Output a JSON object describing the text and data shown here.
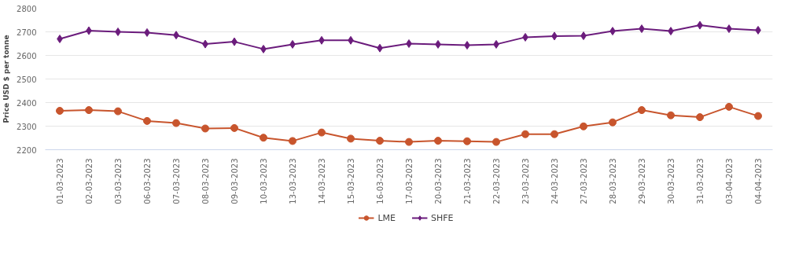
{
  "chart_data": {
    "type": "line",
    "ylabel": "Price USD $ per tonne",
    "categories": [
      "01-03-2023",
      "02-03-2023",
      "03-03-2023",
      "06-03-2023",
      "07-03-2023",
      "08-03-2023",
      "09-03-2023",
      "10-03-2023",
      "13-03-2023",
      "14-03-2023",
      "15-03-2023",
      "16-03-2023",
      "17-03-2023",
      "20-03-2023",
      "21-03-2023",
      "22-03-2023",
      "23-03-2023",
      "24-03-2023",
      "27-03-2023",
      "28-03-2023",
      "29-03-2023",
      "30-03-2023",
      "31-03-2023",
      "03-04-2023",
      "04-04-2023"
    ],
    "series": [
      {
        "name": "LME",
        "color": "#c8552d",
        "marker": "circle",
        "values": [
          2365,
          2368,
          2363,
          2322,
          2313,
          2290,
          2292,
          2251,
          2237,
          2273,
          2247,
          2238,
          2233,
          2238,
          2236,
          2233,
          2266,
          2266,
          2299,
          2316,
          2368,
          2346,
          2338,
          2382,
          2343
        ]
      },
      {
        "name": "SHFE",
        "color": "#6b1c7c",
        "marker": "diamond",
        "values": [
          2670,
          2705,
          2700,
          2697,
          2686,
          2648,
          2658,
          2627,
          2647,
          2664,
          2664,
          2631,
          2650,
          2647,
          2643,
          2647,
          2677,
          2682,
          2683,
          2703,
          2713,
          2703,
          2728,
          2713,
          2707
        ]
      }
    ],
    "ylim": [
      2200,
      2800
    ],
    "yticks": [
      2200,
      2300,
      2400,
      2500,
      2600,
      2700,
      2800
    ],
    "grid": "y",
    "legend": "bottom",
    "line_style": "solid"
  }
}
